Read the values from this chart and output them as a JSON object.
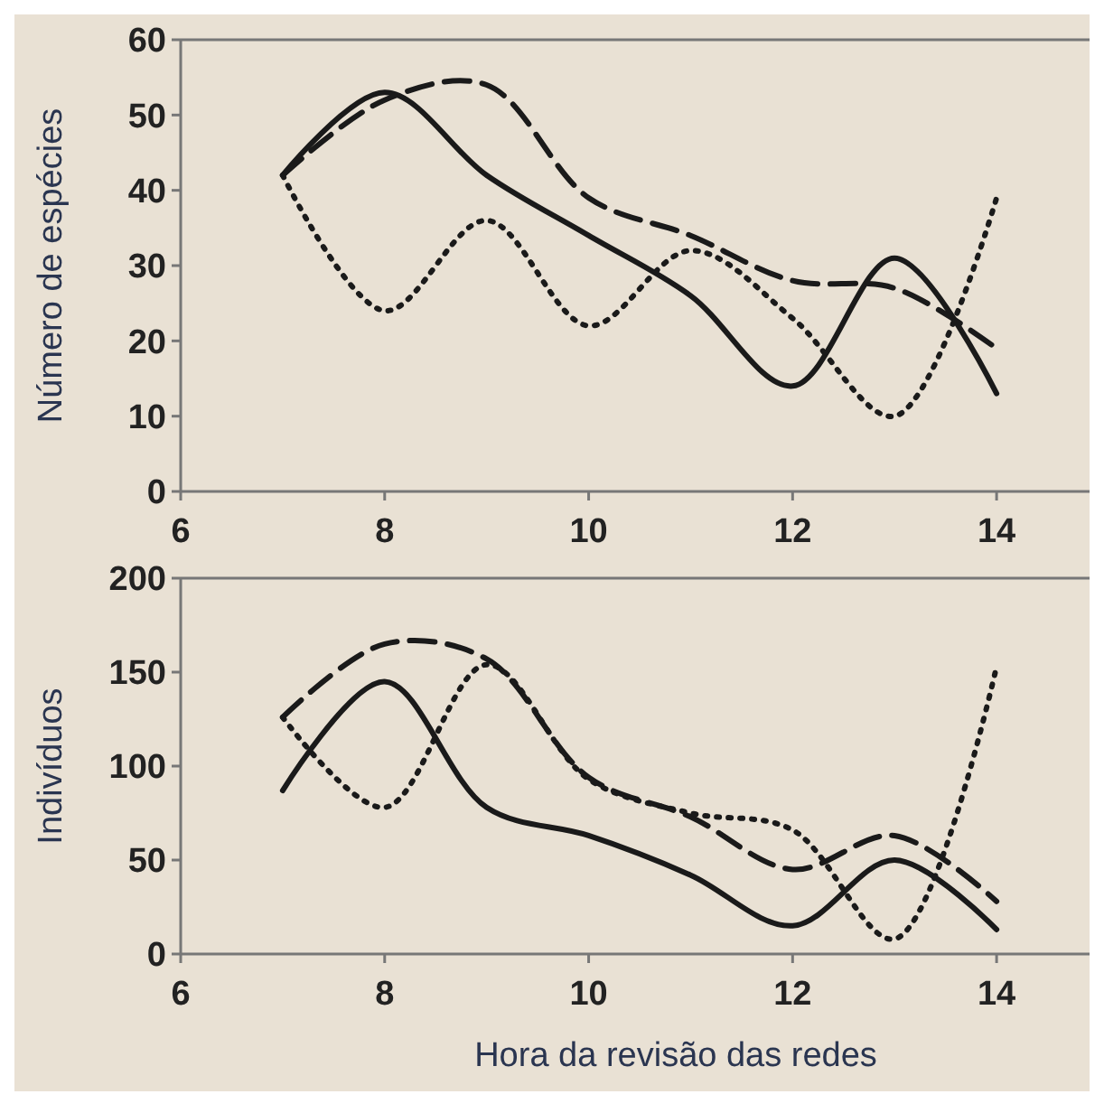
{
  "chart_data": [
    {
      "type": "line",
      "ylabel": "Número de espécies",
      "x": [
        7,
        8,
        9,
        10,
        11,
        12,
        13,
        14
      ],
      "xlim": [
        6,
        15
      ],
      "xticks": [
        6,
        8,
        10,
        12,
        14
      ],
      "ylim": [
        0,
        60
      ],
      "yticks": [
        0,
        10,
        20,
        30,
        40,
        50,
        60
      ],
      "series": [
        {
          "color": "#1a1a1a",
          "line_style": "solid",
          "values": [
            42,
            53,
            42,
            34,
            26,
            14,
            31,
            13
          ]
        },
        {
          "color": "#1a1a1a",
          "line_style": "dashed",
          "values": [
            42,
            52,
            54,
            39,
            34,
            28,
            27,
            19
          ]
        },
        {
          "color": "#1a1a1a",
          "line_style": "dotted",
          "values": [
            42,
            24,
            36,
            22,
            32,
            23,
            10,
            39
          ]
        }
      ]
    },
    {
      "type": "line",
      "ylabel": "Indivíduos",
      "xlabel": "Hora da revisão das redes",
      "x": [
        7,
        8,
        9,
        10,
        11,
        12,
        13,
        14
      ],
      "xlim": [
        6,
        15
      ],
      "xticks": [
        6,
        8,
        10,
        12,
        14
      ],
      "ylim": [
        0,
        200
      ],
      "yticks": [
        0,
        50,
        100,
        150,
        200
      ],
      "series": [
        {
          "color": "#1a1a1a",
          "line_style": "solid",
          "values": [
            87,
            145,
            78,
            63,
            42,
            15,
            50,
            13
          ]
        },
        {
          "color": "#1a1a1a",
          "line_style": "dashed",
          "values": [
            126,
            165,
            157,
            94,
            73,
            45,
            63,
            28
          ]
        },
        {
          "color": "#1a1a1a",
          "line_style": "dotted",
          "values": [
            126,
            78,
            154,
            93,
            75,
            66,
            8,
            153
          ]
        }
      ]
    }
  ]
}
